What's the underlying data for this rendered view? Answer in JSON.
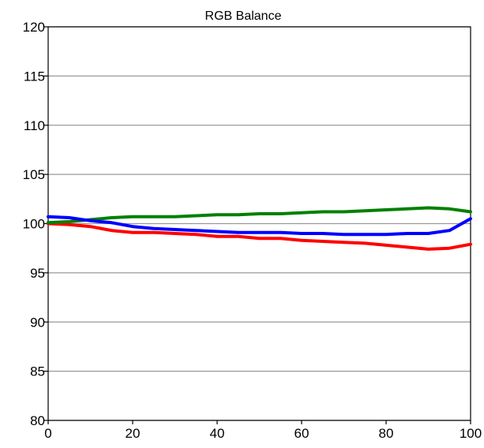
{
  "chart_data": {
    "type": "line",
    "title": "RGB Balance",
    "xlabel": "",
    "ylabel": "",
    "xlim": [
      0,
      100
    ],
    "ylim": [
      80,
      120
    ],
    "x_ticks": [
      0,
      20,
      40,
      60,
      80,
      100
    ],
    "y_ticks": [
      80,
      85,
      90,
      95,
      100,
      105,
      110,
      115,
      120
    ],
    "grid": true,
    "legend": "none",
    "x": [
      0,
      5,
      10,
      15,
      20,
      25,
      30,
      35,
      40,
      45,
      50,
      55,
      60,
      65,
      70,
      75,
      80,
      85,
      90,
      95,
      100
    ],
    "series": [
      {
        "color": "#ff0000",
        "values": [
          100.0,
          99.9,
          99.7,
          99.3,
          99.1,
          99.1,
          99.0,
          98.9,
          98.7,
          98.7,
          98.5,
          98.5,
          98.3,
          98.2,
          98.1,
          98.0,
          97.8,
          97.6,
          97.4,
          97.5,
          97.9
        ]
      },
      {
        "color": "#008000",
        "values": [
          100.1,
          100.2,
          100.4,
          100.6,
          100.7,
          100.7,
          100.7,
          100.8,
          100.9,
          100.9,
          101.0,
          101.0,
          101.1,
          101.2,
          101.2,
          101.3,
          101.4,
          101.5,
          101.6,
          101.5,
          101.2
        ]
      },
      {
        "color": "#0000ff",
        "values": [
          100.7,
          100.6,
          100.3,
          100.1,
          99.7,
          99.5,
          99.4,
          99.3,
          99.2,
          99.1,
          99.1,
          99.1,
          99.0,
          99.0,
          98.9,
          98.9,
          98.9,
          99.0,
          99.0,
          99.3,
          100.5
        ]
      }
    ]
  }
}
